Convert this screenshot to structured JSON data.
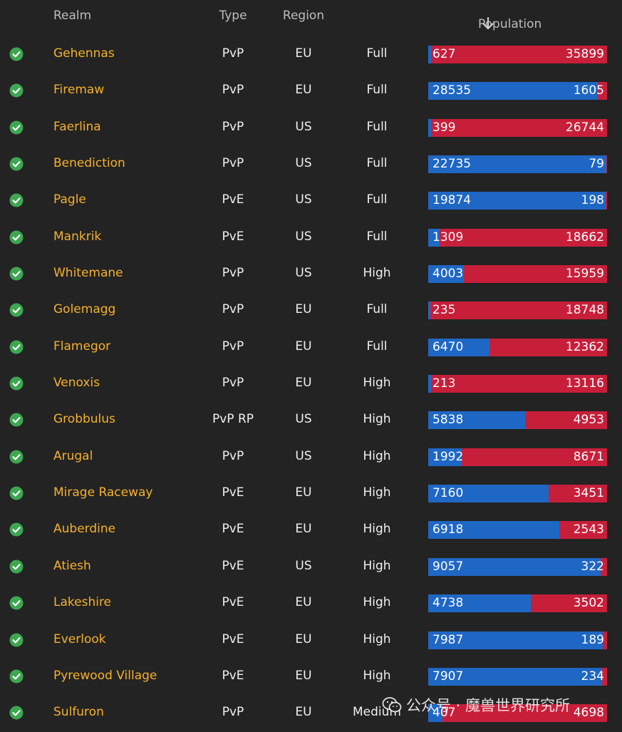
{
  "header": {
    "realm": "Realm",
    "type": "Type",
    "region": "Region",
    "population": "Population",
    "sort_icon": "arrow-down-icon"
  },
  "colors": {
    "alliance": "#1f67c4",
    "horde": "#c71f3a",
    "realm_name": "#f5b12c",
    "status_ok": "#3ea651"
  },
  "rows": [
    {
      "realm": "Gehennas",
      "type": "PvP",
      "region": "EU",
      "load": "Full",
      "alliance": 627,
      "horde": 35899
    },
    {
      "realm": "Firemaw",
      "type": "PvP",
      "region": "EU",
      "load": "Full",
      "alliance": 28535,
      "horde": 1605
    },
    {
      "realm": "Faerlina",
      "type": "PvP",
      "region": "US",
      "load": "Full",
      "alliance": 399,
      "horde": 26744
    },
    {
      "realm": "Benediction",
      "type": "PvP",
      "region": "US",
      "load": "Full",
      "alliance": 22735,
      "horde": 79
    },
    {
      "realm": "Pagle",
      "type": "PvE",
      "region": "US",
      "load": "Full",
      "alliance": 19874,
      "horde": 198
    },
    {
      "realm": "Mankrik",
      "type": "PvE",
      "region": "US",
      "load": "Full",
      "alliance": 1309,
      "horde": 18662
    },
    {
      "realm": "Whitemane",
      "type": "PvP",
      "region": "US",
      "load": "High",
      "alliance": 4003,
      "horde": 15959
    },
    {
      "realm": "Golemagg",
      "type": "PvP",
      "region": "EU",
      "load": "Full",
      "alliance": 235,
      "horde": 18748
    },
    {
      "realm": "Flamegor",
      "type": "PvP",
      "region": "EU",
      "load": "Full",
      "alliance": 6470,
      "horde": 12362
    },
    {
      "realm": "Venoxis",
      "type": "PvP",
      "region": "EU",
      "load": "High",
      "alliance": 213,
      "horde": 13116
    },
    {
      "realm": "Grobbulus",
      "type": "PvP RP",
      "region": "US",
      "load": "High",
      "alliance": 5838,
      "horde": 4953
    },
    {
      "realm": "Arugal",
      "type": "PvP",
      "region": "US",
      "load": "High",
      "alliance": 1992,
      "horde": 8671
    },
    {
      "realm": "Mirage Raceway",
      "type": "PvE",
      "region": "EU",
      "load": "High",
      "alliance": 7160,
      "horde": 3451
    },
    {
      "realm": "Auberdine",
      "type": "PvE",
      "region": "EU",
      "load": "High",
      "alliance": 6918,
      "horde": 2543
    },
    {
      "realm": "Atiesh",
      "type": "PvE",
      "region": "US",
      "load": "High",
      "alliance": 9057,
      "horde": 322
    },
    {
      "realm": "Lakeshire",
      "type": "PvE",
      "region": "EU",
      "load": "High",
      "alliance": 4738,
      "horde": 3502
    },
    {
      "realm": "Everlook",
      "type": "PvE",
      "region": "EU",
      "load": "High",
      "alliance": 7987,
      "horde": 189
    },
    {
      "realm": "Pyrewood Village",
      "type": "PvE",
      "region": "EU",
      "load": "High",
      "alliance": 7907,
      "horde": 234
    },
    {
      "realm": "Sulfuron",
      "type": "PvP",
      "region": "EU",
      "load": "Medium",
      "alliance": 407,
      "horde": 4698
    }
  ],
  "watermark": {
    "text": "公众号 · 魔兽世界研究所",
    "icon": "wechat-icon"
  }
}
